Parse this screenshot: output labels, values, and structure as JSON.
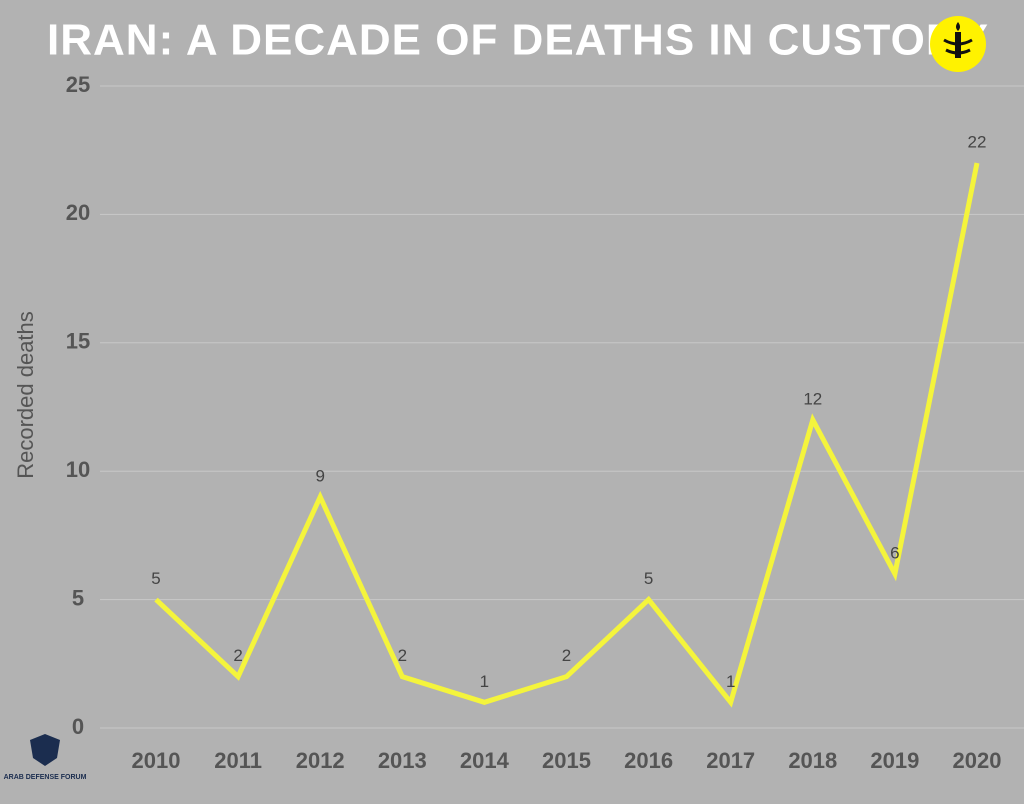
{
  "chart_data": {
    "type": "line",
    "title": "IRAN: A DECADE OF DEATHS IN CUSTODY",
    "ylabel": "Recorded deaths",
    "categories": [
      "2010",
      "2011",
      "2012",
      "2013",
      "2014",
      "2015",
      "2016",
      "2017",
      "2018",
      "2019",
      "2020"
    ],
    "values": [
      5,
      2,
      9,
      2,
      1,
      2,
      5,
      1,
      12,
      6,
      22
    ],
    "color": "#f4f43c",
    "ylim": [
      0,
      25
    ],
    "yticks": [
      0,
      5,
      10,
      15,
      20,
      25
    ],
    "grid": true,
    "data_labels": true
  },
  "watermark": "ARAB DEFENSE FORUM"
}
